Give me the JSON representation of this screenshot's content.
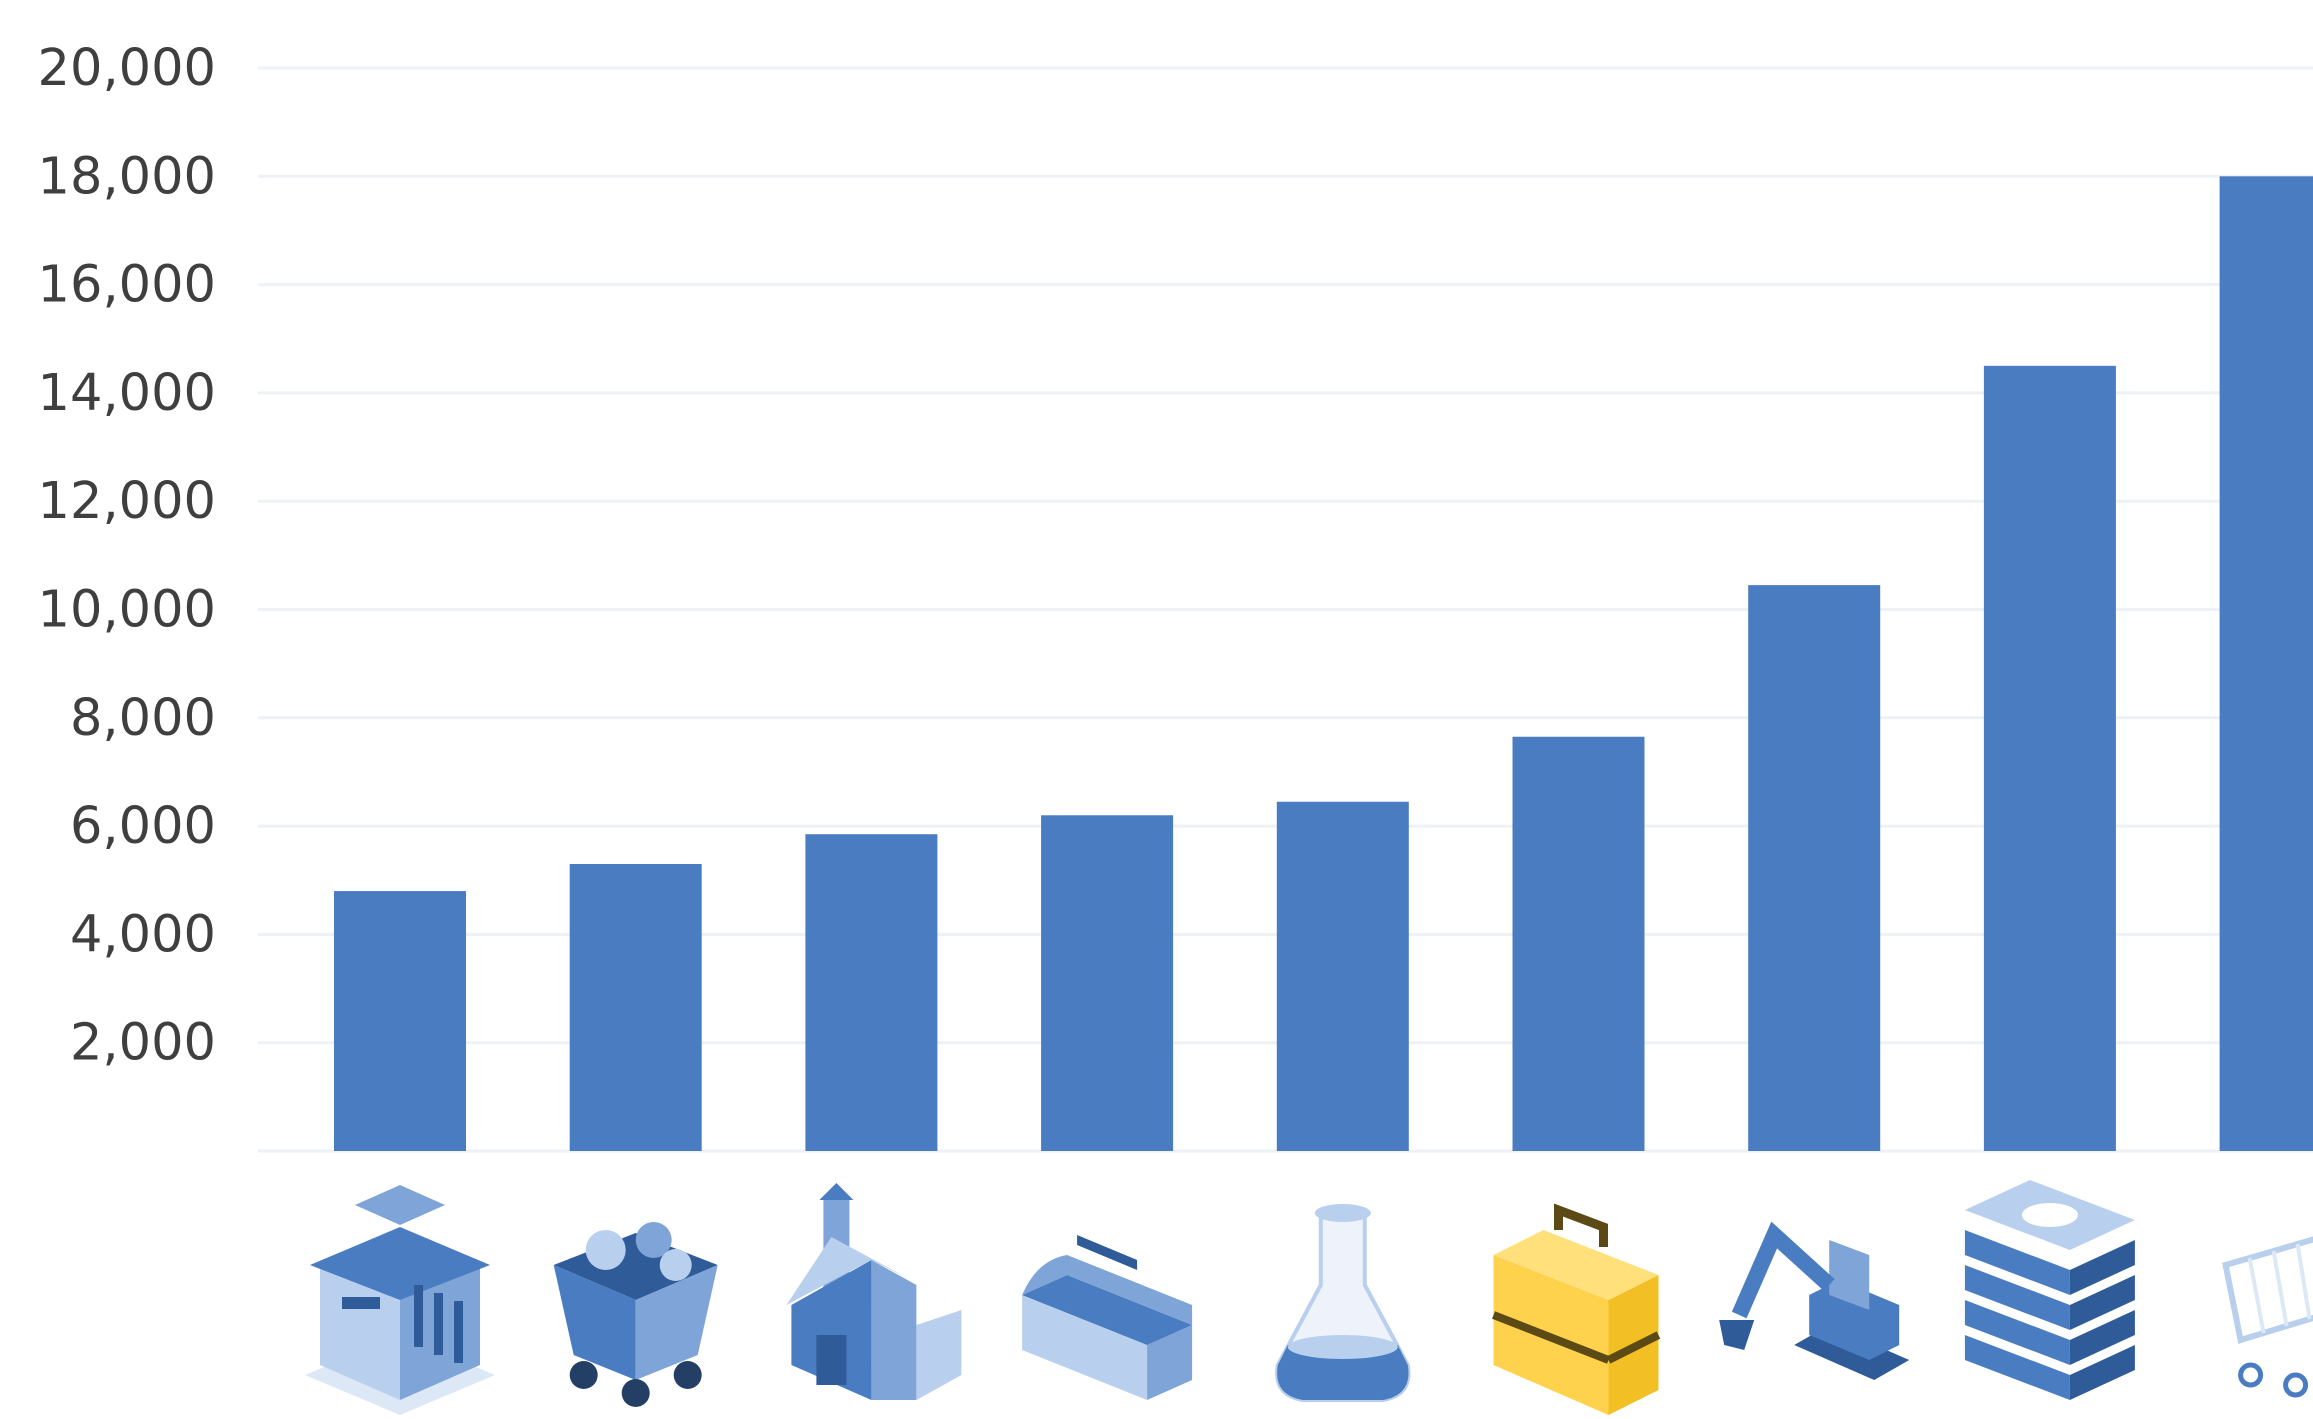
{
  "chart_data": {
    "type": "bar",
    "title": "",
    "xlabel": "",
    "ylabel": "",
    "ylim": [
      0,
      20000
    ],
    "y_ticks": [
      "2,000",
      "4,000",
      "6,000",
      "8,000",
      "10,000",
      "12,000",
      "14,000",
      "16,000",
      "18,000",
      "20,000"
    ],
    "y_tick_values": [
      2000,
      4000,
      6000,
      8000,
      10000,
      12000,
      14000,
      16000,
      18000,
      20000
    ],
    "grid": true,
    "categories": [
      "bank-icon",
      "mine-cart-icon",
      "farm-barn-icon",
      "toolbox-icon",
      "flask-icon",
      "briefcase-icon",
      "excavator-icon",
      "cash-stack-icon",
      "shopping-cart-icon"
    ],
    "values": [
      4800,
      5300,
      5850,
      6200,
      6450,
      7650,
      10450,
      14500,
      18000
    ],
    "bar_color": "#4a7cc1",
    "highlight_color": "#ffd24d",
    "highlight_category": "briefcase-icon"
  }
}
